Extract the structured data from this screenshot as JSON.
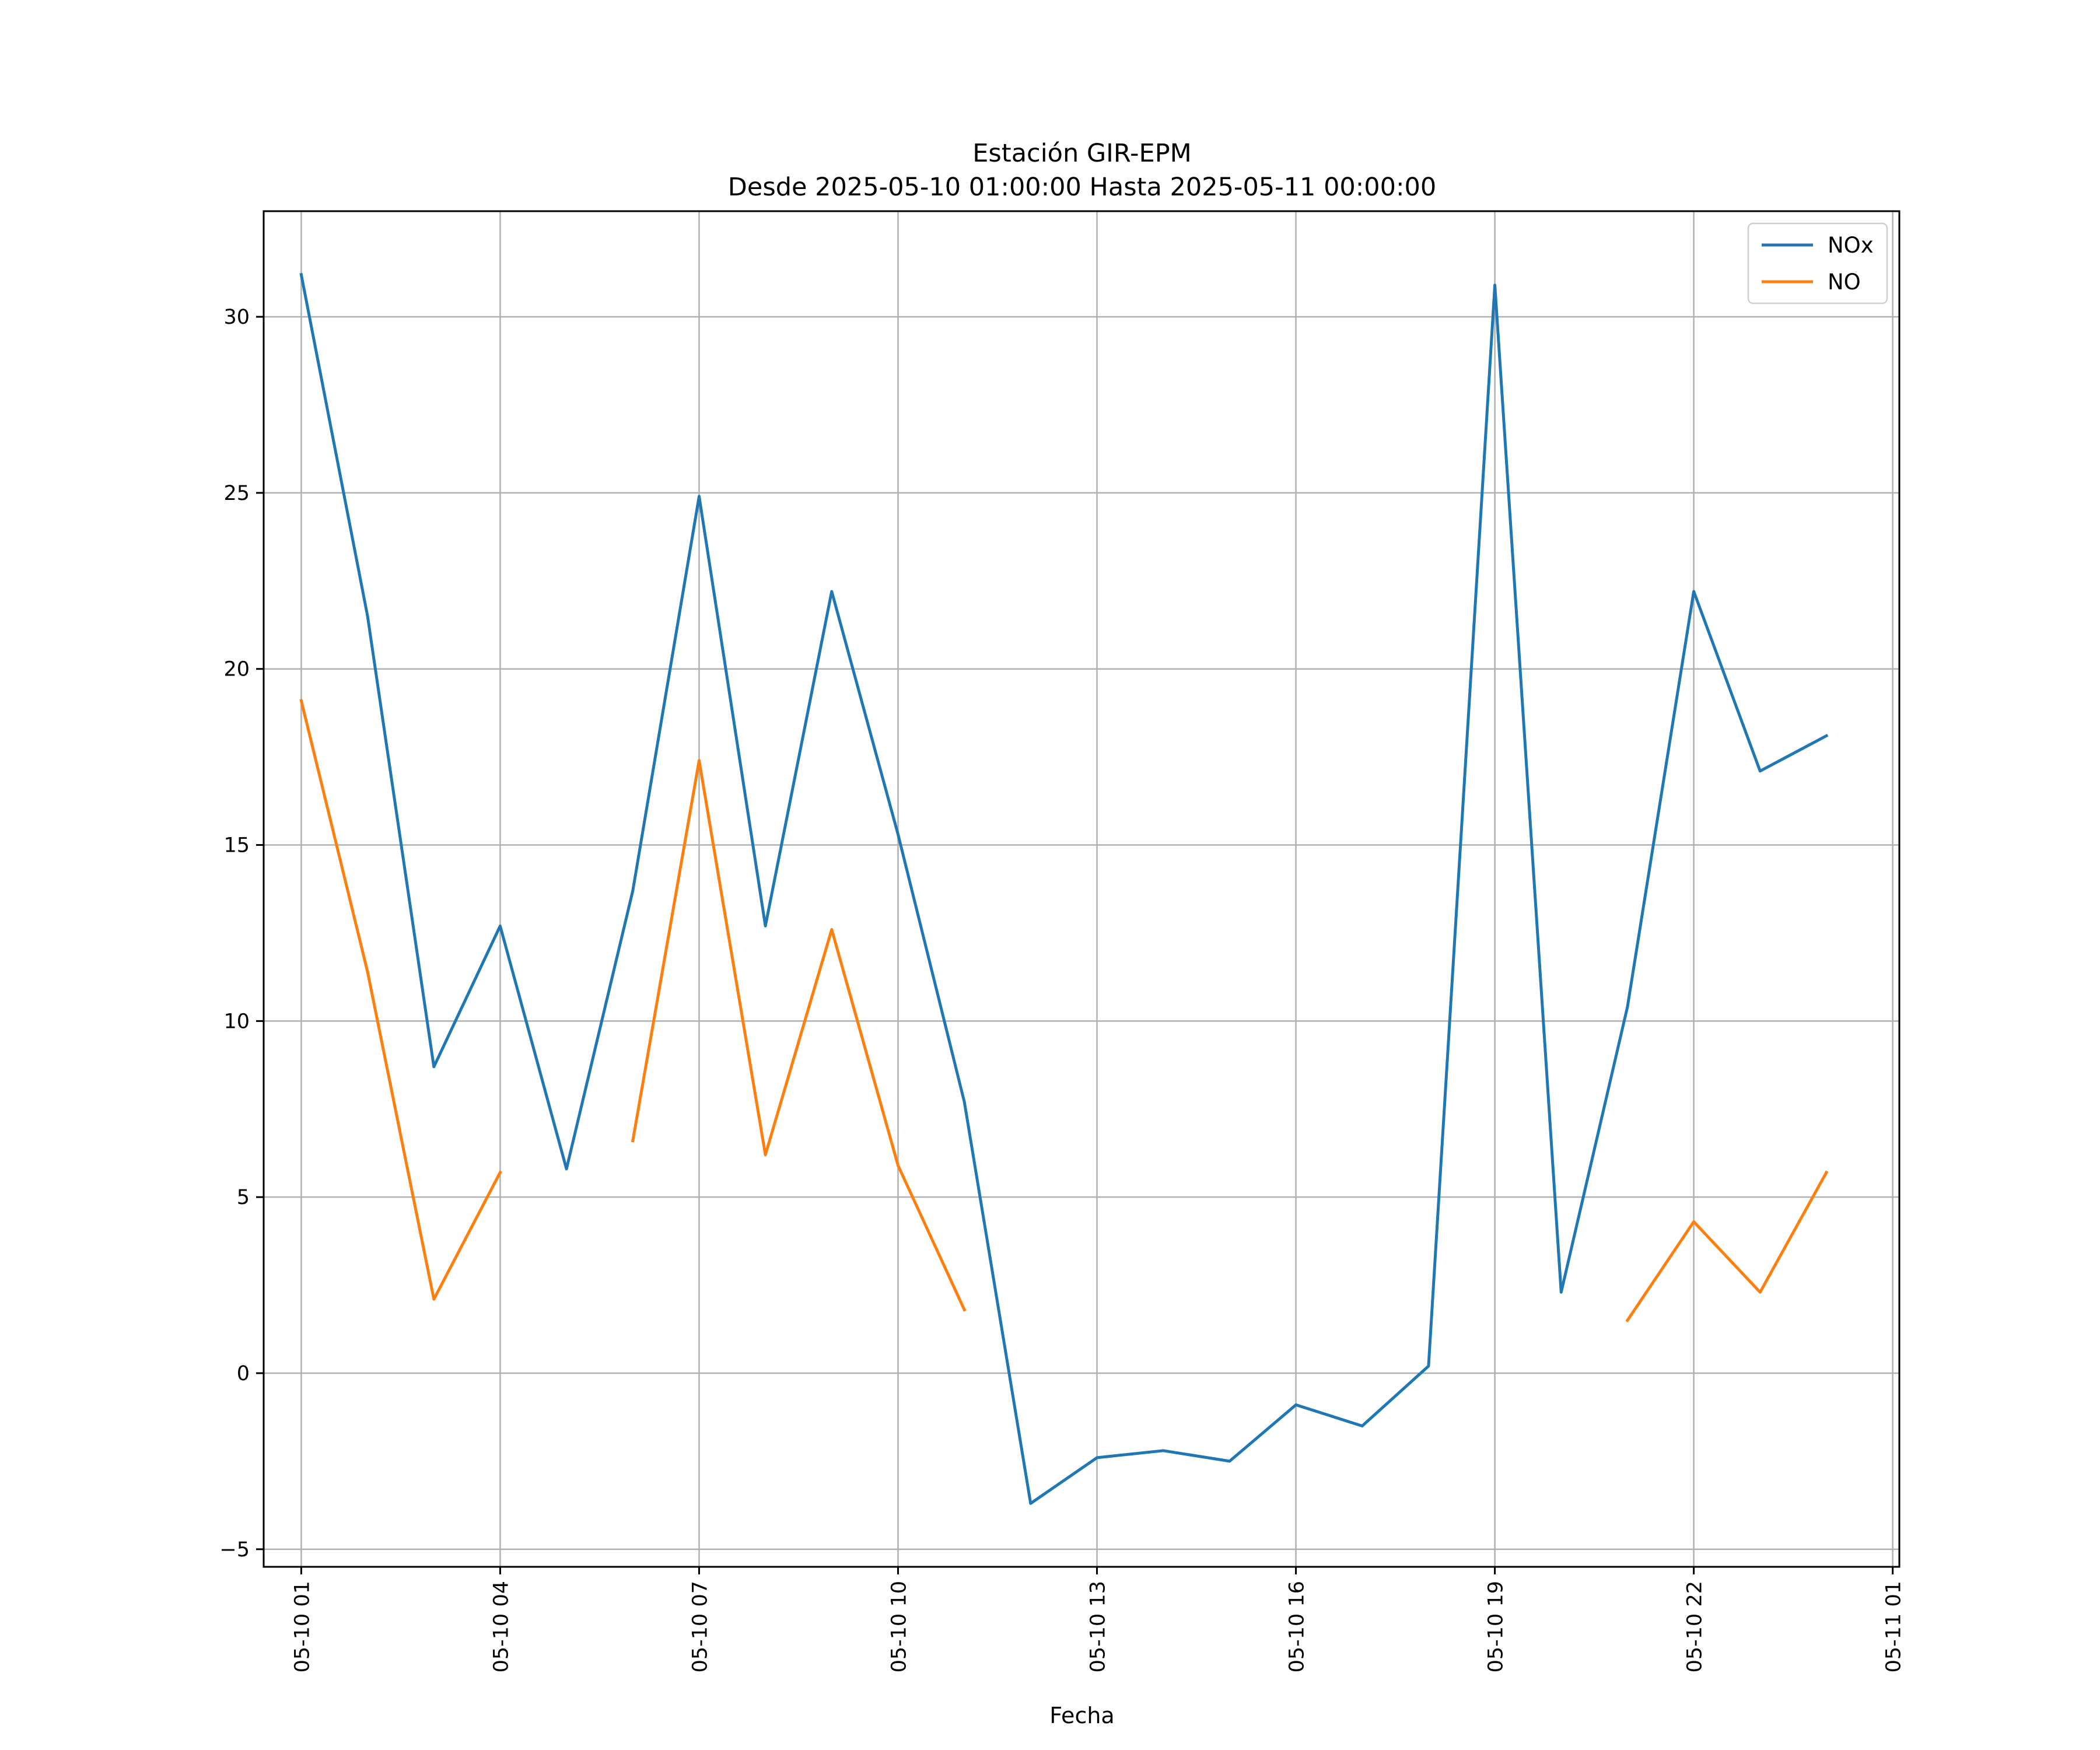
{
  "chart_data": {
    "type": "line",
    "title_line1": "Estación GIR-EPM",
    "title_line2": "Desde 2025-05-10 01:00:00 Hasta 2025-05-11 00:00:00",
    "xlabel": "Fecha",
    "ylabel": "",
    "x": [
      "05-10 01",
      "05-10 02",
      "05-10 03",
      "05-10 04",
      "05-10 05",
      "05-10 06",
      "05-10 07",
      "05-10 08",
      "05-10 09",
      "05-10 10",
      "05-10 11",
      "05-10 12",
      "05-10 13",
      "05-10 14",
      "05-10 15",
      "05-10 16",
      "05-10 17",
      "05-10 18",
      "05-10 19",
      "05-10 20",
      "05-10 21",
      "05-10 22",
      "05-10 23",
      "05-11 00"
    ],
    "x_ticks": [
      "05-10 01",
      "05-10 04",
      "05-10 07",
      "05-10 10",
      "05-10 13",
      "05-10 16",
      "05-10 19",
      "05-10 22",
      "05-11 01"
    ],
    "xlim": [
      "05-10 00:26",
      "05-11 01:06"
    ],
    "ylim": [
      -5.5,
      33
    ],
    "y_ticks": [
      -5,
      0,
      5,
      10,
      15,
      20,
      25,
      30
    ],
    "y_tick_labels": [
      "−5",
      "0",
      "5",
      "10",
      "15",
      "20",
      "25",
      "30"
    ],
    "grid": true,
    "legend_position": "upper right",
    "series": [
      {
        "name": "NOx",
        "color": "#1f77b4",
        "values": [
          31.2,
          21.5,
          8.7,
          12.7,
          5.8,
          13.7,
          24.9,
          12.7,
          22.2,
          15.3,
          7.7,
          -3.7,
          -2.4,
          -2.2,
          -2.5,
          -0.9,
          -1.5,
          0.2,
          30.9,
          2.3,
          10.4,
          22.2,
          17.1,
          18.1
        ]
      },
      {
        "name": "NO",
        "color": "#ff7f0e",
        "values": [
          19.1,
          11.4,
          2.1,
          5.7,
          null,
          6.6,
          17.4,
          6.2,
          12.6,
          5.9,
          1.8,
          null,
          null,
          null,
          null,
          null,
          null,
          null,
          null,
          null,
          1.5,
          4.3,
          2.3,
          5.7
        ]
      }
    ]
  }
}
